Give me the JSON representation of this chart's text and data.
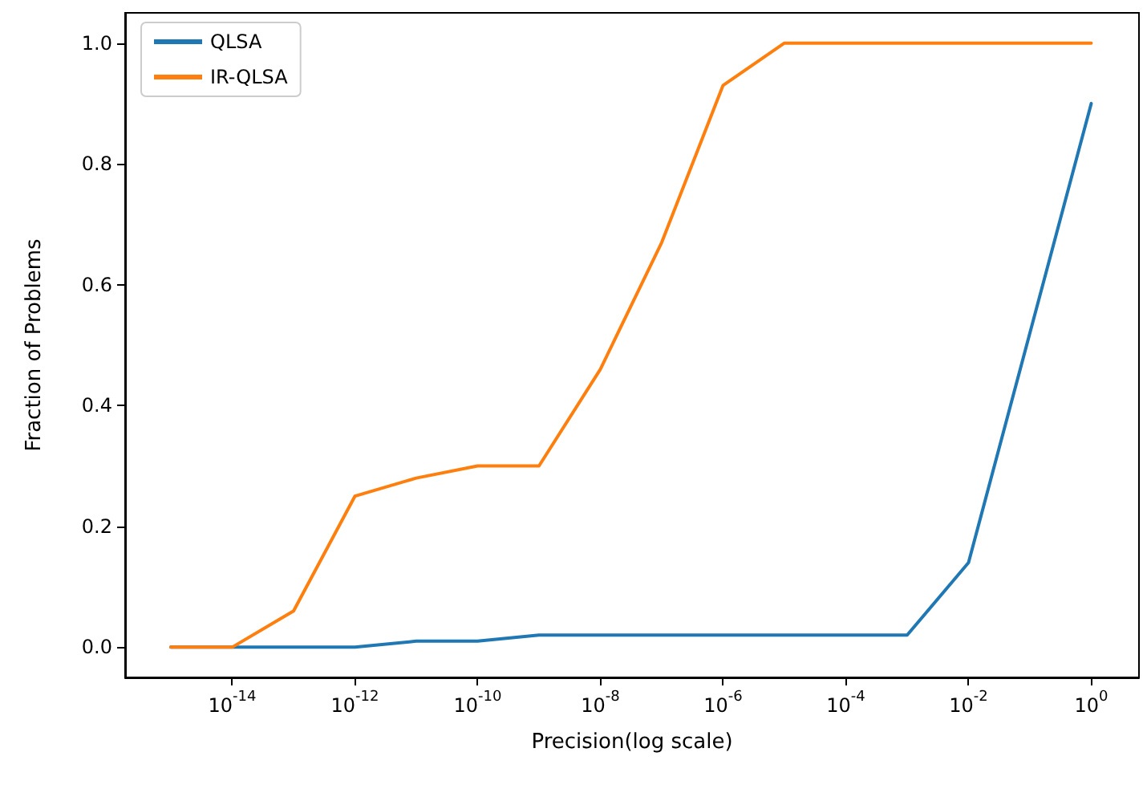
{
  "chart_data": {
    "type": "line",
    "xlabel": "Precision(log scale)",
    "ylabel": "Fraction of Problems",
    "log": "x",
    "grid": false,
    "legend": "top left",
    "marker": "none",
    "line_style": "solid",
    "x": [
      1e-15,
      1e-14,
      1e-13,
      1e-12,
      1e-11,
      1e-10,
      1e-09,
      1e-08,
      1e-07,
      1e-06,
      1e-05,
      0.0001,
      0.001,
      0.01,
      0.1,
      1
    ],
    "series": [
      {
        "name": "QLSA",
        "color": "#1f77b4",
        "values": [
          0,
          0,
          0,
          0,
          0.01,
          0.01,
          0.02,
          0.02,
          0.02,
          0.02,
          0.02,
          0.02,
          0.02,
          0.14,
          0.52,
          0.9
        ]
      },
      {
        "name": "IR-QLSA",
        "color": "#ff7f0e",
        "values": [
          0,
          0,
          0.06,
          0.25,
          0.28,
          0.3,
          0.3,
          0.46,
          0.67,
          0.93,
          1,
          1,
          1,
          1,
          1,
          1
        ]
      }
    ],
    "xlim": [
      1.8e-16,
      6.0
    ],
    "ylim": [
      -0.05,
      1.05
    ],
    "xticks": [
      {
        "value": 1e-14,
        "label": "10$^{-14}$"
      },
      {
        "value": 1e-12,
        "label": "10$^{-12}$"
      },
      {
        "value": 1e-10,
        "label": "10$^{-10}$"
      },
      {
        "value": 1e-08,
        "label": "10$^{-8}$"
      },
      {
        "value": 1e-06,
        "label": "10$^{-6}$"
      },
      {
        "value": 0.0001,
        "label": "10$^{-4}$"
      },
      {
        "value": 0.01,
        "label": "10$^{-2}$"
      },
      {
        "value": 1,
        "label": "10$^{0}$"
      }
    ],
    "yticks": [
      {
        "value": 0,
        "label": "0.0"
      },
      {
        "value": 0.2,
        "label": "0.2"
      },
      {
        "value": 0.4,
        "label": "0.4"
      },
      {
        "value": 0.6,
        "label": "0.6"
      },
      {
        "value": 0.8,
        "label": "0.8"
      },
      {
        "value": 1,
        "label": "1.0"
      }
    ]
  }
}
